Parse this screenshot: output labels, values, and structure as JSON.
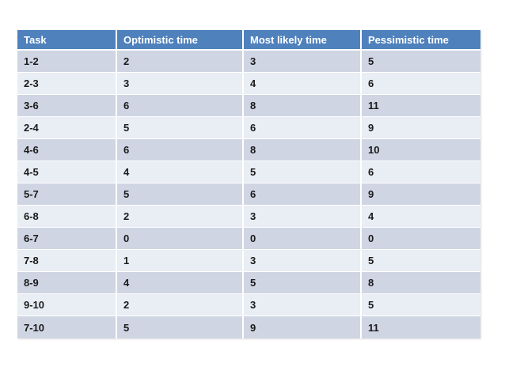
{
  "slide": {
    "background": "#FFFFFF"
  },
  "colors": {
    "header_bg": "#4F81BD",
    "header_text": "#FFFFFF",
    "band_dark": "#D0D5E3",
    "band_light": "#E9EDF4",
    "body_text": "#1A1A1A",
    "separator": "#FFFFFF"
  },
  "chart_data": {
    "type": "table",
    "title": "",
    "columns": [
      "Task",
      "Optimistic time",
      "Most likely time",
      "Pessimistic time"
    ],
    "rows": [
      [
        "1-2",
        "2",
        "3",
        "5"
      ],
      [
        "2-3",
        "3",
        "4",
        "6"
      ],
      [
        "3-6",
        "6",
        "8",
        "11"
      ],
      [
        "2-4",
        "5",
        "6",
        "9"
      ],
      [
        "4-6",
        "6",
        "8",
        "10"
      ],
      [
        "4-5",
        "4",
        "5",
        "6"
      ],
      [
        "5-7",
        "5",
        "6",
        "9"
      ],
      [
        "6-8",
        "2",
        "3",
        "4"
      ],
      [
        "6-7",
        "0",
        "0",
        "0"
      ],
      [
        "7-8",
        "1",
        "3",
        "5"
      ],
      [
        "8-9",
        "4",
        "5",
        "8"
      ],
      [
        "9-10",
        "2",
        "3",
        "5"
      ],
      [
        "7-10",
        "5",
        "9",
        "11"
      ]
    ]
  }
}
